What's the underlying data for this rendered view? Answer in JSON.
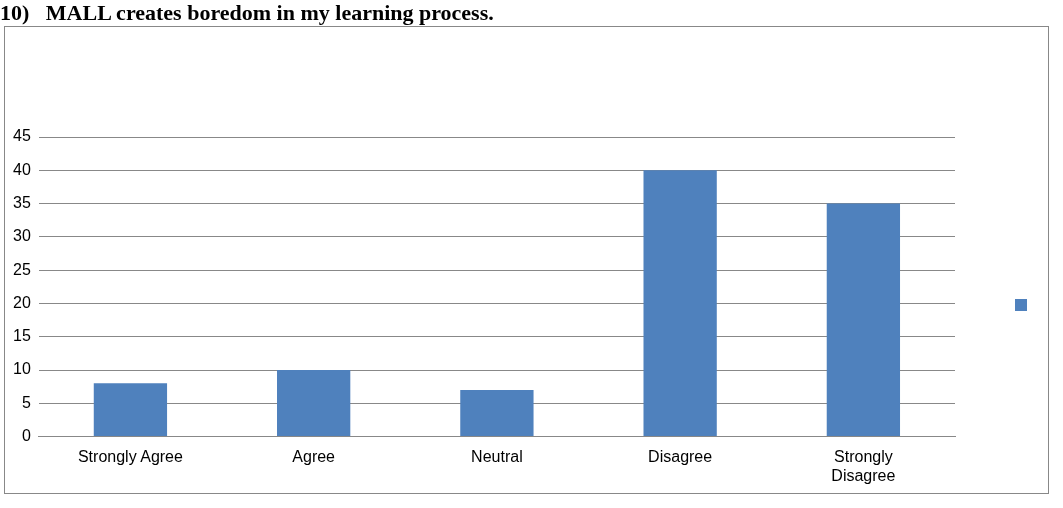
{
  "chart_data": {
    "type": "bar",
    "title": "10)   MALL creates boredom in my learning process.",
    "categories": [
      "Strongly Agree",
      "Agree",
      "Neutral",
      "Disagree",
      "Strongly Disagree"
    ],
    "series": [
      {
        "color": "#4f81bd",
        "values": [
          8,
          10,
          7,
          40,
          35
        ]
      }
    ],
    "ylim": [
      0,
      45
    ],
    "yticks": [
      0,
      5,
      10,
      15,
      20,
      25,
      30,
      35,
      40,
      45
    ],
    "grid": "y"
  }
}
